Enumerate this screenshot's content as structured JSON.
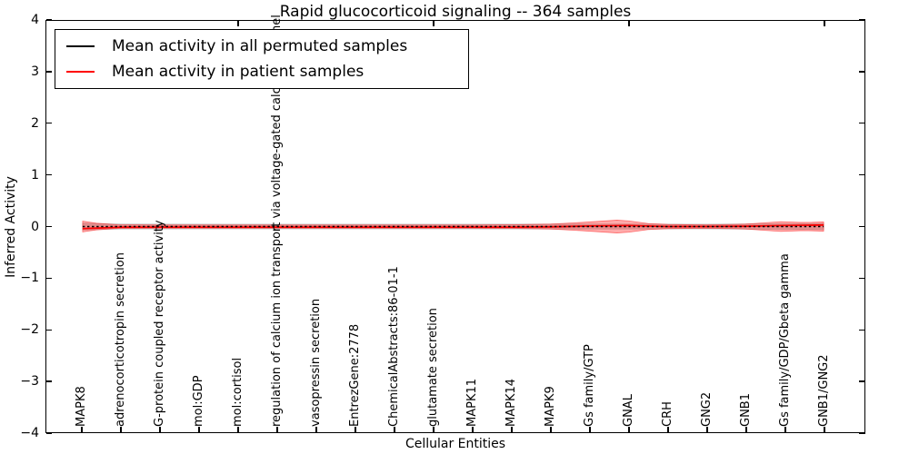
{
  "title": "Rapid glucocorticoid signaling -- 364 samples",
  "axes": {
    "xlabel": "Cellular Entities",
    "ylabel": "Inferred Activity",
    "ylim": [
      -4,
      4
    ],
    "yticks": [
      4,
      3,
      2,
      1,
      0,
      -1,
      -2,
      -3,
      -4
    ],
    "top_ticks_at_category_index": [
      5,
      10,
      15,
      20
    ]
  },
  "legend": {
    "items": [
      {
        "label": "Mean activity in all permuted samples",
        "color": "#000000"
      },
      {
        "label": "Mean activity in patient samples",
        "color": "#ff0000"
      }
    ]
  },
  "chart_data": {
    "type": "line",
    "title": "Rapid glucocorticoid signaling -- 364 samples",
    "xlabel": "Cellular Entities",
    "ylabel": "Inferred Activity",
    "ylim": [
      -4,
      4
    ],
    "grid": false,
    "legend_position": "upper left",
    "categories": [
      "MAPK8",
      "adrenocorticotropin secretion",
      "G-protein coupled receptor activity",
      "mol:GDP",
      "mol:cortisol",
      "regulation of calcium ion transport via voltage-gated calcium channel",
      "vasopressin secretion",
      "EntrezGene:2778",
      "ChemicalAbstracts:86-01-1",
      "glutamate secretion",
      "MAPK11",
      "MAPK14",
      "MAPK9",
      "Gs family/GTP",
      "GNAL",
      "CRH",
      "GNG2",
      "GNB1",
      "Gs family/GDP/Gbeta gamma",
      "GNB1/GNG2"
    ],
    "series": [
      {
        "name": "Mean activity in all permuted samples",
        "color": "#000000",
        "linestyle": "dotted",
        "values": [
          0,
          0,
          0,
          0,
          0,
          0,
          0,
          0,
          0,
          0,
          0,
          0,
          0,
          0,
          0,
          0,
          0,
          0,
          0,
          0
        ]
      },
      {
        "name": "Mean activity in patient samples",
        "color": "#ff0000",
        "linestyle": "solid",
        "values": [
          -0.04,
          -0.012,
          -0.012,
          -0.012,
          -0.012,
          -0.012,
          -0.012,
          -0.012,
          -0.012,
          -0.012,
          -0.012,
          -0.01,
          -0.005,
          0.01,
          0.02,
          0.0,
          0.0,
          0.005,
          0.02,
          0.03
        ]
      }
    ],
    "bands": [
      {
        "name": "permuted-activity-spread",
        "color": "#aaaaaa",
        "opacity": 0.5,
        "profile": [
          [
            1,
            0.065
          ],
          [
            2,
            0.05
          ],
          [
            6,
            0.045
          ],
          [
            10,
            0.045
          ],
          [
            14,
            0.05
          ],
          [
            17,
            0.045
          ],
          [
            19,
            0.055
          ],
          [
            20,
            0.06
          ]
        ]
      },
      {
        "name": "patient-activity-spread",
        "color": "#ff0000",
        "opacity": 0.33,
        "profile": [
          [
            1,
            0.105
          ],
          [
            1.35,
            0.065
          ],
          [
            1.9,
            0.035
          ],
          [
            3,
            0.03
          ],
          [
            5,
            0.03
          ],
          [
            7,
            0.03
          ],
          [
            9,
            0.03
          ],
          [
            11,
            0.03
          ],
          [
            12,
            0.035
          ],
          [
            13,
            0.05
          ],
          [
            13.8,
            0.08
          ],
          [
            14.7,
            0.125
          ],
          [
            15,
            0.11
          ],
          [
            15.5,
            0.06
          ],
          [
            16,
            0.04
          ],
          [
            17,
            0.032
          ],
          [
            17.7,
            0.042
          ],
          [
            18,
            0.05
          ],
          [
            18.9,
            0.095
          ],
          [
            19.4,
            0.08
          ],
          [
            19.7,
            0.082
          ],
          [
            20,
            0.09
          ]
        ]
      }
    ]
  }
}
